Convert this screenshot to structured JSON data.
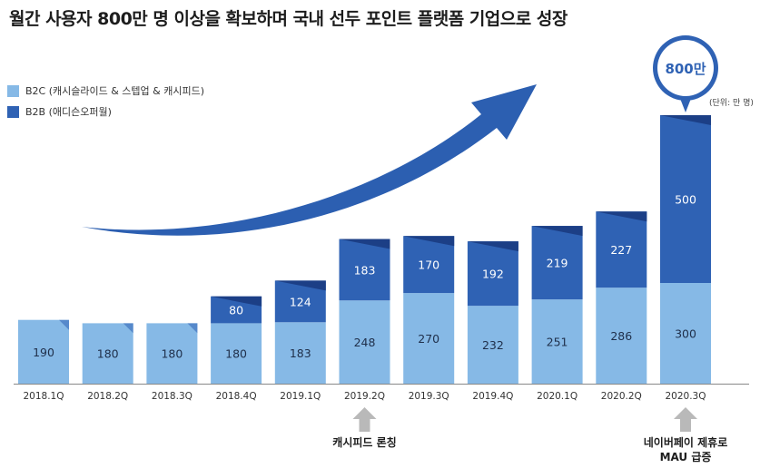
{
  "title": "월간 사용자 800만 명 이상을 확보하며 국내 선두 포인트 플랫폼 기업으로 성장",
  "unit_note": "(단위: 만 명)",
  "colors": {
    "b2c": "#86b9e6",
    "b2b": "#2f62b4",
    "b2b_dark": "#1c3f86",
    "arrow": "#2c5fb1",
    "callout": "#2f62b4",
    "up_arrow": "#b9b9b9",
    "axis": "#888888"
  },
  "chart_data": {
    "type": "bar",
    "stacked": true,
    "title": "월간 사용자 800만 명 이상을 확보하며 국내 선두 포인트 플랫폼 기업으로 성장",
    "xlabel": "",
    "ylabel": "",
    "unit": "만 명",
    "categories": [
      "2018.1Q",
      "2018.2Q",
      "2018.3Q",
      "2018.4Q",
      "2019.1Q",
      "2019.2Q",
      "2019.3Q",
      "2019.4Q",
      "2020.1Q",
      "2020.2Q",
      "2020.3Q"
    ],
    "series": [
      {
        "name": "B2C (캐시슬라이드 & 스텝업 & 캐시피드)",
        "key": "b2c",
        "values": [
          190,
          180,
          180,
          180,
          183,
          248,
          270,
          232,
          251,
          286,
          300
        ]
      },
      {
        "name": "B2B (애디슨오퍼월)",
        "key": "b2b",
        "values": [
          null,
          null,
          null,
          80,
          124,
          183,
          170,
          192,
          219,
          227,
          500
        ]
      }
    ],
    "ylim": [
      0,
      800
    ],
    "grid": false,
    "legend": "top-left",
    "callout": {
      "category": "2020.3Q",
      "text": "800만"
    },
    "annotations": [
      {
        "category": "2019.2Q",
        "text": "캐시피드 론칭"
      },
      {
        "category": "2020.3Q",
        "text": "네이버페이 제휴로 MAU 급증"
      }
    ]
  }
}
